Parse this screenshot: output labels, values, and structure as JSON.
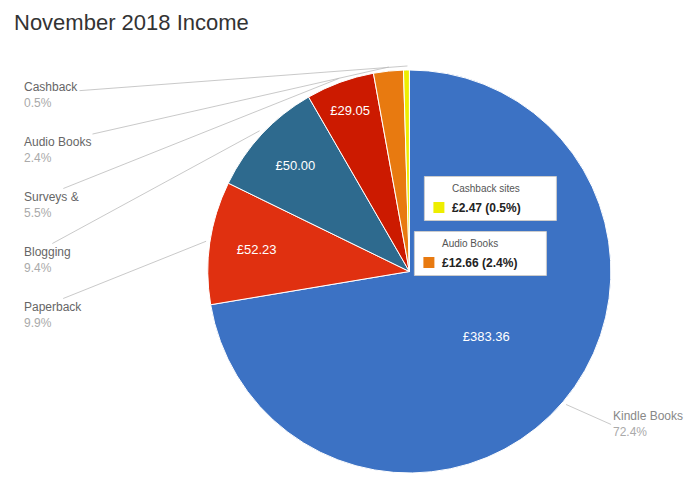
{
  "chart_data": {
    "type": "pie",
    "title": "November 2018 Income",
    "categories": [
      "Kindle Books",
      "Paperback",
      "Blogging",
      "Surveys &",
      "Audio Books",
      "Cashback"
    ],
    "values": [
      383.36,
      52.23,
      50.0,
      29.05,
      12.66,
      2.47
    ],
    "value_labels": [
      "£383.36",
      "£52.23",
      "£50.00",
      "£29.05",
      null,
      null
    ],
    "shares": [
      72.4,
      9.9,
      9.4,
      5.5,
      2.4,
      0.5
    ],
    "share_labels": [
      "72.4%",
      "9.9%",
      "9.4%",
      "5.5%",
      "2.4%",
      "0.5%"
    ],
    "colors": [
      "#3c72c4",
      "#e03010",
      "#2e6a8e",
      "#cc1a00",
      "#e87a10",
      "#eeee00"
    ],
    "callouts": [
      {
        "title": "Cashback sites",
        "color": "#eeee00",
        "text": "£2.47 (0.5%)"
      },
      {
        "title": "Audio Books",
        "color": "#e87a10",
        "text": "£12.66 (2.4%)"
      }
    ]
  }
}
